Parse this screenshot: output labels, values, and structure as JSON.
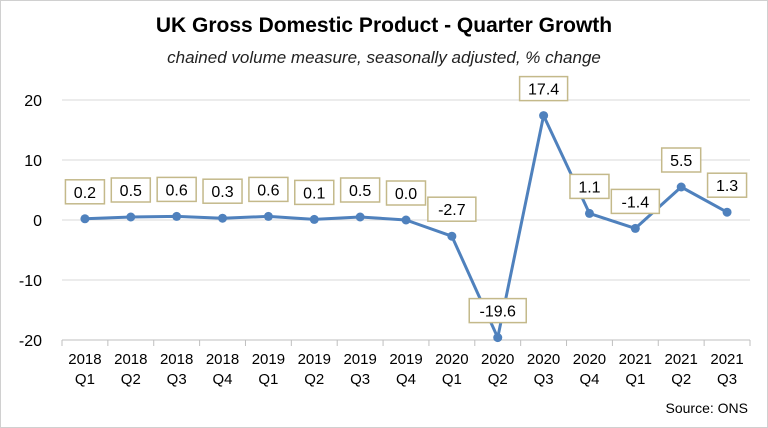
{
  "chart_data": {
    "type": "line",
    "title": "UK Gross Domestic Product - Quarter Growth",
    "subtitle": "chained volume measure, seasonally adjusted, % change",
    "source": "Source: ONS",
    "categories": [
      [
        "2018",
        "Q1"
      ],
      [
        "2018",
        "Q2"
      ],
      [
        "2018",
        "Q3"
      ],
      [
        "2018",
        "Q4"
      ],
      [
        "2019",
        "Q1"
      ],
      [
        "2019",
        "Q2"
      ],
      [
        "2019",
        "Q3"
      ],
      [
        "2019",
        "Q4"
      ],
      [
        "2020",
        "Q1"
      ],
      [
        "2020",
        "Q2"
      ],
      [
        "2020",
        "Q3"
      ],
      [
        "2020",
        "Q4"
      ],
      [
        "2021",
        "Q1"
      ],
      [
        "2021",
        "Q2"
      ],
      [
        "2021",
        "Q3"
      ]
    ],
    "values": [
      0.2,
      0.5,
      0.6,
      0.3,
      0.6,
      0.1,
      0.5,
      0.0,
      -2.7,
      -19.6,
      17.4,
      1.1,
      -1.4,
      5.5,
      1.3
    ],
    "data_labels": [
      "0.2",
      "0.5",
      "0.6",
      "0.3",
      "0.6",
      "0.1",
      "0.5",
      "0.0",
      "-2.7",
      "-19.6",
      "17.4",
      "1.1",
      "-1.4",
      "5.5",
      "1.3"
    ],
    "label_positions": [
      "above",
      "above",
      "above",
      "above",
      "above",
      "above",
      "above",
      "above",
      "above",
      "above",
      "above",
      "above",
      "above",
      "above",
      "above"
    ],
    "yticks": [
      20,
      10,
      0,
      -10,
      -20
    ],
    "ytick_labels": [
      "20",
      "10",
      "0",
      "-10",
      "-20"
    ],
    "ylim": [
      -20,
      20
    ],
    "grid": true,
    "line_color": "#4f81bd",
    "label_border_color": "#c4b98a",
    "grid_color": "#d9d9d9"
  }
}
